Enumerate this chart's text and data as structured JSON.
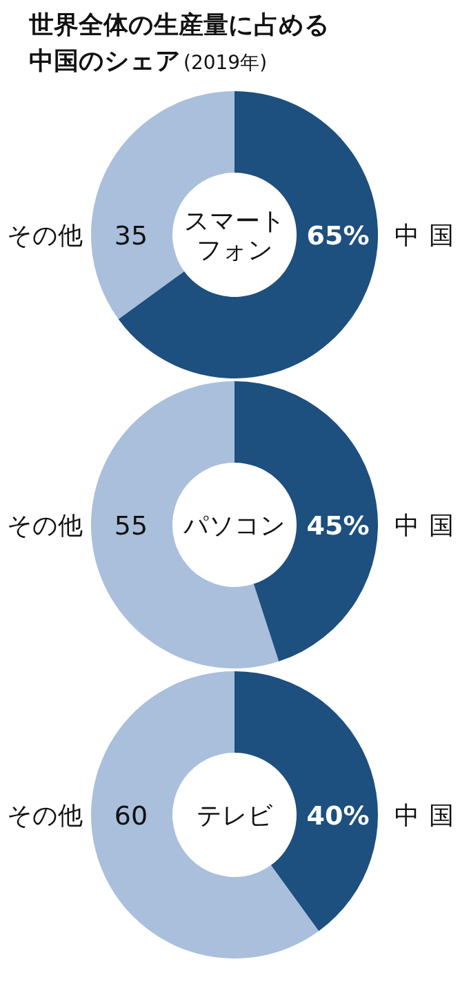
{
  "chart_data": [
    {
      "type": "donut",
      "title": "世界全体の生産量に占める中国のシェア",
      "subtitle": "(2019年)",
      "categories": [
        "その他",
        "中国"
      ],
      "values": [
        35,
        65
      ],
      "value_labels": [
        "35",
        "65%"
      ],
      "colors": [
        "#a9bfdc",
        "#1d4f7f"
      ],
      "annotations": [
        "スマートフォン"
      ]
    },
    {
      "type": "donut",
      "categories": [
        "その他",
        "中国"
      ],
      "values": [
        55,
        45
      ],
      "value_labels": [
        "55",
        "45%"
      ],
      "colors": [
        "#a9bfdc",
        "#1d4f7f"
      ],
      "annotations": [
        "パソコン"
      ]
    },
    {
      "type": "donut",
      "categories": [
        "その他",
        "中国"
      ],
      "values": [
        60,
        40
      ],
      "value_labels": [
        "60",
        "40%"
      ],
      "colors": [
        "#a9bfdc",
        "#1d4f7f"
      ],
      "annotations": [
        "テレビ"
      ]
    }
  ]
}
